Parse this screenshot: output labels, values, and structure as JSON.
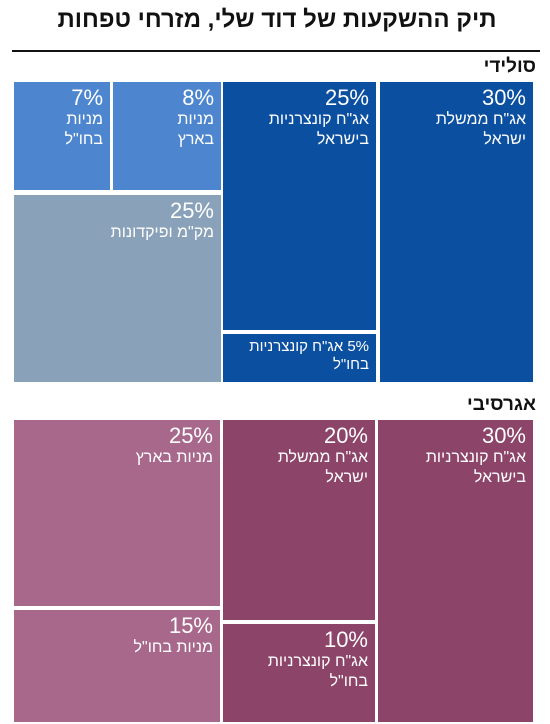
{
  "title": "תיק ההשקעות של דוד שלי, מזרחי טפחות",
  "colors": {
    "solid_dark": "#0a4fa0",
    "solid_light": "#4d86cf",
    "solid_gray": "#8aa2b9",
    "aggr_dark": "#8c4468",
    "aggr_light": "#a8688b"
  },
  "chart_data": [
    {
      "type": "treemap",
      "title": "סולידי",
      "unit": "%",
      "items": [
        {
          "label": "אג\"ח ממשלת\nישראל",
          "value": 30,
          "color": "#0a4fa0"
        },
        {
          "label": "אג\"ח קונצרניות\nבישראל",
          "value": 25,
          "color": "#0a4fa0"
        },
        {
          "label": "אג\"ח\nקונצרניות בחו\"ל",
          "value": 5,
          "color": "#0a4fa0"
        },
        {
          "label": "מניות\nבארץ",
          "value": 8,
          "color": "#4d86cf"
        },
        {
          "label": "מניות\nבחו\"ל",
          "value": 7,
          "color": "#4d86cf"
        },
        {
          "label": "מק\"מ ופיקדונות",
          "value": 25,
          "color": "#8aa2b9"
        }
      ]
    },
    {
      "type": "treemap",
      "title": "אגרסיבי",
      "unit": "%",
      "items": [
        {
          "label": "אג\"ח קונצרניות\nבישראל",
          "value": 30,
          "color": "#8c4468"
        },
        {
          "label": "אג\"ח ממשלת\nישראל",
          "value": 20,
          "color": "#8c4468"
        },
        {
          "label": "אג\"ח קונצרניות\nבחו\"ל",
          "value": 10,
          "color": "#8c4468"
        },
        {
          "label": "מניות בארץ",
          "value": 25,
          "color": "#a8688b"
        },
        {
          "label": "מניות בחו\"ל",
          "value": 15,
          "color": "#a8688b"
        }
      ]
    }
  ]
}
